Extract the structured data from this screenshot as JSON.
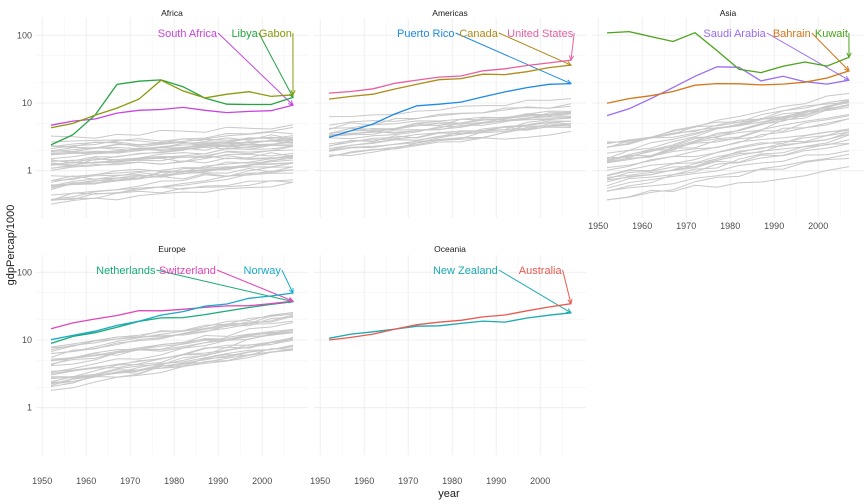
{
  "chart_data": {
    "type": "line",
    "xlabel": "year",
    "ylabel": "gdpPercap/1000",
    "yscale": "log10",
    "xlim": [
      1952,
      2007
    ],
    "ylim_log": [
      0.2,
      180
    ],
    "x_ticks": [
      1950,
      1960,
      1970,
      1980,
      1990,
      2000
    ],
    "y_ticks": [
      1,
      10,
      100
    ],
    "x_tick_labels": [
      "1950",
      "1960",
      "1970",
      "1980",
      "1990",
      "2000"
    ],
    "y_tick_labels": [
      "1",
      "10",
      "100"
    ],
    "grid": true,
    "years": [
      1952,
      1957,
      1962,
      1967,
      1972,
      1977,
      1982,
      1987,
      1992,
      1997,
      2002,
      2007
    ],
    "background_line_color": "#c8c8c8",
    "facets": [
      {
        "name": "Africa",
        "background_ranges": [
          [
            0.3,
            3.0
          ],
          [
            0.6,
            5.0
          ]
        ],
        "background_count": 40,
        "highlighted": [
          {
            "name": "South Africa",
            "color": "#c845e0",
            "label_x": 1983,
            "values": [
              4.7,
              5.4,
              5.8,
              7.1,
              7.8,
              8.0,
              8.6,
              7.8,
              7.2,
              7.5,
              7.7,
              9.3
            ]
          },
          {
            "name": "Libya",
            "color": "#26a444",
            "label_x": 1996,
            "values": [
              2.4,
              3.4,
              6.6,
              18.8,
              21.0,
              21.9,
              17.4,
              11.8,
              9.6,
              9.5,
              9.5,
              12.1
            ]
          },
          {
            "name": "Gabon",
            "color": "#8a9a0c",
            "label_x": 2003,
            "values": [
              4.3,
              5.0,
              6.6,
              8.4,
              11.4,
              21.7,
              15.1,
              11.9,
              13.5,
              14.7,
              12.5,
              13.2
            ]
          }
        ]
      },
      {
        "name": "Americas",
        "background_ranges": [
          [
            1.5,
            6.0
          ],
          [
            3.5,
            12.0
          ]
        ],
        "background_count": 22,
        "highlighted": [
          {
            "name": "Puerto Rico",
            "color": "#1f8ae6",
            "label_x": 1974,
            "values": [
              3.1,
              3.9,
              4.9,
              6.9,
              9.1,
              9.6,
              10.3,
              12.3,
              14.6,
              16.9,
              18.9,
              19.3
            ]
          },
          {
            "name": "Canada",
            "color": "#b08b1a",
            "label_x": 1986,
            "values": [
              11.4,
              12.5,
              13.5,
              16.1,
              18.97,
              22.1,
              22.9,
              26.6,
              26.3,
              28.95,
              33.3,
              36.3
            ]
          },
          {
            "name": "United States",
            "color": "#e85fa0",
            "label_x": 2000,
            "values": [
              14.0,
              14.8,
              16.2,
              19.5,
              21.8,
              24.1,
              25.0,
              29.9,
              32.0,
              35.8,
              39.1,
              42.95
            ]
          }
        ]
      },
      {
        "name": "Asia",
        "background_ranges": [
          [
            0.35,
            2.5
          ],
          [
            0.9,
            20.0
          ]
        ],
        "background_count": 30,
        "highlighted": [
          {
            "name": "Saudi Arabia",
            "color": "#9a6ef0",
            "label_x": 1981,
            "values": [
              6.5,
              8.2,
              11.6,
              16.9,
              24.8,
              34.2,
              33.7,
              21.2,
              24.8,
              20.6,
              19.0,
              21.7
            ]
          },
          {
            "name": "Bahrain",
            "color": "#d4761a",
            "label_x": 1994,
            "values": [
              9.9,
              11.6,
              12.8,
              14.8,
              18.3,
              19.3,
              19.2,
              18.5,
              19.0,
              20.3,
              23.4,
              29.8
            ]
          },
          {
            "name": "Kuwait",
            "color": "#4aa41a",
            "label_x": 2003,
            "values": [
              108.4,
              113.5,
              95.5,
              80.9,
              109.3,
              59.3,
              31.4,
              28.1,
              34.9,
              40.3,
              35.1,
              47.3
            ]
          }
        ]
      },
      {
        "name": "Europe",
        "background_ranges": [
          [
            1.6,
            8.0
          ],
          [
            5.0,
            33.0
          ]
        ],
        "background_count": 27,
        "highlighted": [
          {
            "name": "Netherlands",
            "color": "#1aaa78",
            "label_x": 1969,
            "values": [
              8.9,
              11.3,
              12.8,
              15.4,
              18.8,
              21.2,
              21.4,
              23.7,
              26.8,
              30.2,
              33.7,
              36.8
            ]
          },
          {
            "name": "Switzerland",
            "color": "#e046b8",
            "label_x": 1983,
            "values": [
              14.7,
              17.9,
              20.4,
              22.97,
              27.2,
              26.98,
              28.4,
              30.3,
              31.9,
              32.1,
              34.5,
              37.5
            ]
          },
          {
            "name": "Norway",
            "color": "#1aaac8",
            "label_x": 2000,
            "values": [
              10.1,
              11.7,
              13.5,
              16.4,
              18.97,
              23.3,
              26.3,
              31.5,
              33.97,
              41.3,
              44.7,
              49.4
            ]
          }
        ]
      },
      {
        "name": "Oceania",
        "background_ranges": [],
        "background_count": 0,
        "highlighted": [
          {
            "name": "New Zealand",
            "color": "#1aaab0",
            "label_x": 1983,
            "values": [
              10.6,
              12.2,
              13.2,
              14.5,
              16.0,
              16.2,
              17.6,
              19.0,
              18.4,
              21.1,
              23.2,
              25.2
            ]
          },
          {
            "name": "Australia",
            "color": "#e85a50",
            "label_x": 2000,
            "values": [
              10.0,
              10.9,
              12.2,
              14.5,
              16.8,
              18.3,
              19.5,
              21.9,
              23.4,
              27.0,
              30.7,
              34.4
            ]
          }
        ]
      }
    ]
  }
}
